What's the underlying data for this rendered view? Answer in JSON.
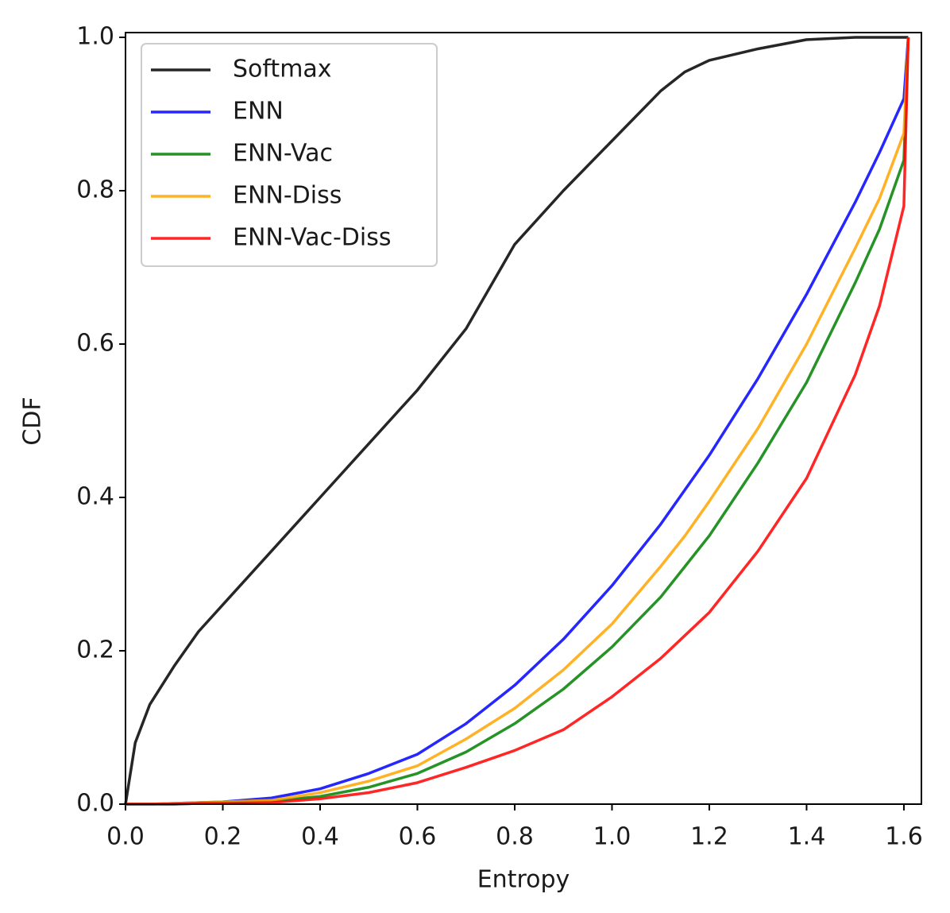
{
  "chart_data": {
    "type": "line",
    "x_label": "Entropy",
    "y_label": "CDF",
    "x": [
      0,
      0.02,
      0.05,
      0.1,
      0.15,
      0.2,
      0.3,
      0.4,
      0.5,
      0.6,
      0.7,
      0.8,
      0.9,
      1.0,
      1.1,
      1.15,
      1.2,
      1.3,
      1.4,
      1.5,
      1.55,
      1.6,
      1.609
    ],
    "series": [
      {
        "name": "Softmax",
        "color": "#000000",
        "values": [
          0,
          0.08,
          0.13,
          0.18,
          0.225,
          0.26,
          0.33,
          0.4,
          0.47,
          0.54,
          0.62,
          0.73,
          0.8,
          0.865,
          0.93,
          0.955,
          0.97,
          0.985,
          0.997,
          1.0,
          1.0,
          1.0,
          1.0
        ]
      },
      {
        "name": "ENN",
        "color": "#0000ff",
        "values": [
          0,
          0,
          0,
          0.001,
          0.002,
          0.003,
          0.008,
          0.02,
          0.04,
          0.065,
          0.105,
          0.155,
          0.215,
          0.285,
          0.365,
          0.41,
          0.455,
          0.555,
          0.665,
          0.785,
          0.85,
          0.92,
          1.0
        ]
      },
      {
        "name": "ENN-Vac",
        "color": "#008000",
        "values": [
          0,
          0,
          0,
          0,
          0.001,
          0.002,
          0.004,
          0.01,
          0.022,
          0.04,
          0.068,
          0.105,
          0.15,
          0.205,
          0.27,
          0.31,
          0.35,
          0.445,
          0.55,
          0.68,
          0.75,
          0.84,
          1.0
        ]
      },
      {
        "name": "ENN-Diss",
        "color": "#ffa500",
        "values": [
          0,
          0,
          0,
          0.001,
          0.002,
          0.003,
          0.005,
          0.015,
          0.03,
          0.05,
          0.085,
          0.125,
          0.175,
          0.235,
          0.31,
          0.35,
          0.395,
          0.49,
          0.6,
          0.725,
          0.79,
          0.875,
          1.0
        ]
      },
      {
        "name": "ENN-Vac-Diss",
        "color": "#ff0000",
        "values": [
          0,
          0,
          0,
          0,
          0.001,
          0.001,
          0.002,
          0.007,
          0.015,
          0.028,
          0.048,
          0.07,
          0.097,
          0.14,
          0.19,
          0.22,
          0.25,
          0.33,
          0.425,
          0.56,
          0.65,
          0.78,
          1.0
        ]
      }
    ],
    "xlim": [
      0,
      1.636
    ],
    "ylim": [
      0,
      1.0
    ],
    "xticks": [
      {
        "value": 0,
        "label": "0.0"
      },
      0.2,
      0.4,
      0.6,
      0.8,
      {
        "value": 1,
        "label": "1.0"
      },
      1.2,
      1.4,
      1.6
    ],
    "yticks": [
      {
        "value": 0,
        "label": "0.0"
      },
      0.2,
      0.4,
      0.6,
      0.8,
      {
        "value": 1,
        "label": "1.0"
      }
    ],
    "legend": "upper left",
    "grid": false
  }
}
